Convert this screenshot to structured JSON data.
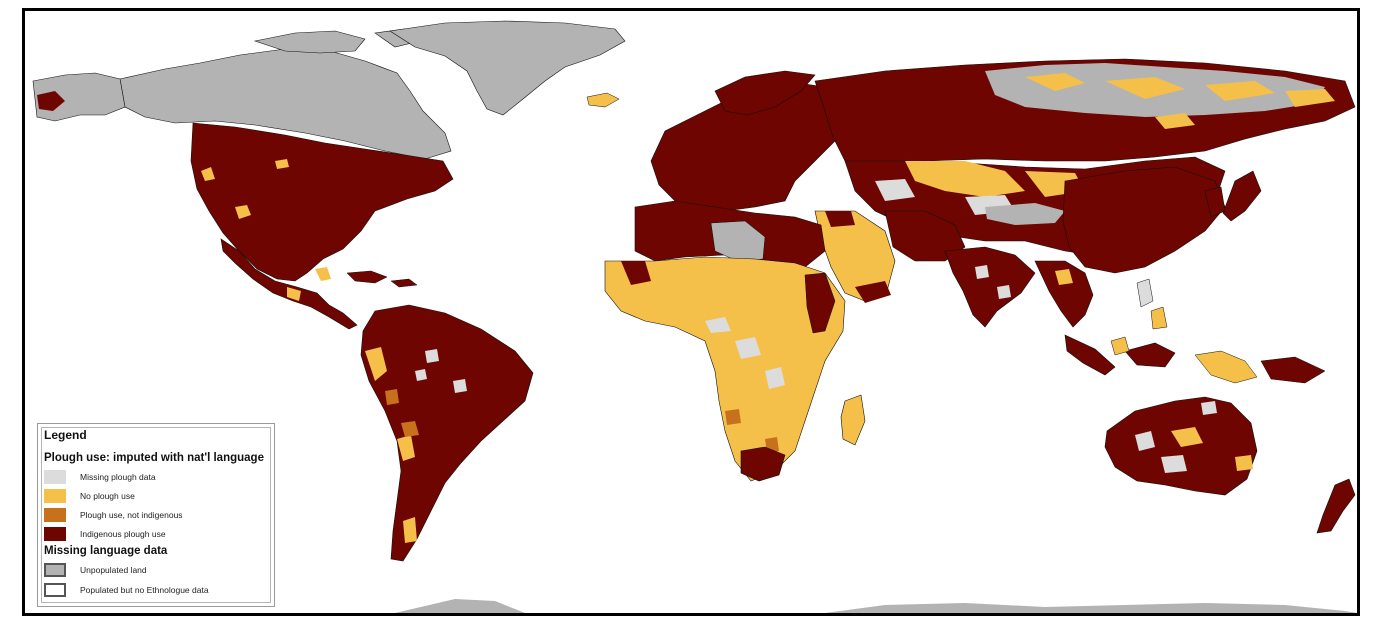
{
  "legend": {
    "title": "Legend",
    "section_plough": "Plough use: imputed with nat'l language",
    "section_language": "Missing language data",
    "items": [
      {
        "label": "Missing plough data",
        "color": "#dcdcdc",
        "border": "#dcdcdc"
      },
      {
        "label": "No plough use",
        "color": "#f5c04a",
        "border": "#f5c04a"
      },
      {
        "label": "Plough use, not indigenous",
        "color": "#c8711c",
        "border": "#c8711c"
      },
      {
        "label": "Indigenous plough use",
        "color": "#6e0500",
        "border": "#6e0500"
      },
      {
        "label": "Unpopulated land",
        "color": "#b3b3b3",
        "border": "#555555"
      },
      {
        "label": "Populated but no Ethnologue data",
        "color": "#ffffff",
        "border": "#555555"
      }
    ]
  },
  "colors": {
    "indigenous": "#6e0500",
    "no_plough": "#f5c04a",
    "not_indigenous": "#c8711c",
    "missing": "#dcdcdc",
    "unpopulated": "#b3b3b3",
    "border": "#111111"
  }
}
